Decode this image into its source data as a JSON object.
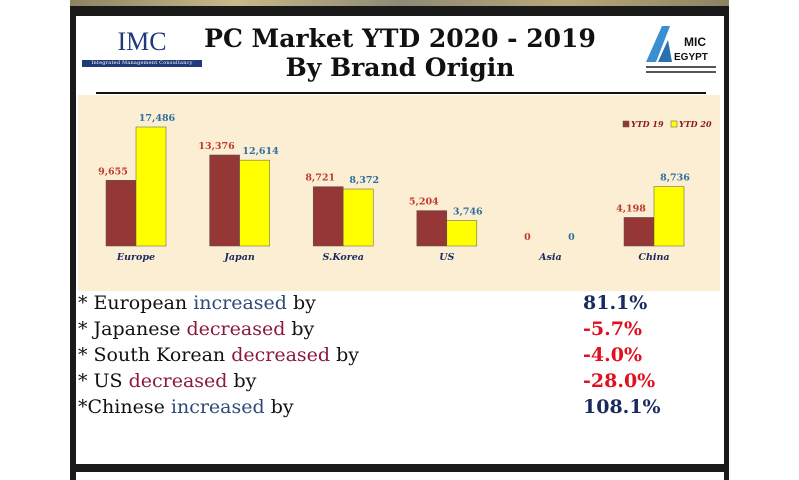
{
  "header": {
    "title_line1": "PC Market YTD 2020 - 2019",
    "title_line2": "By Brand Origin",
    "logo_left": "IMC",
    "logo_left_sub": "Integrated Management Consultancy",
    "logo_right": "AMIC EGYPT"
  },
  "chart_data": {
    "type": "bar",
    "title": "",
    "xlabel": "",
    "ylabel": "",
    "categories": [
      "Europe",
      "Japan",
      "S.Korea",
      "US",
      "Asia",
      "China"
    ],
    "series": [
      {
        "name": "YTD 19",
        "color": "#953735",
        "values": [
          9655,
          13376,
          8721,
          5204,
          0,
          4198
        ],
        "labels": [
          "9,655",
          "13,376",
          "8,721",
          "5,204",
          "0",
          "4,198"
        ]
      },
      {
        "name": "YTD 20",
        "color": "#ffff00",
        "values": [
          17486,
          12614,
          8372,
          3746,
          0,
          8736
        ],
        "labels": [
          "17,486",
          "12,614",
          "8,372",
          "3,746",
          "0",
          "8,736"
        ]
      }
    ],
    "ylim": [
      0,
      17486
    ],
    "grid": false,
    "legend": "top-right"
  },
  "summary": [
    {
      "pre": "* European ",
      "verb": "increased",
      "post": " by",
      "value": "81.1%",
      "dir": "inc"
    },
    {
      "pre": "* Japanese ",
      "verb": "decreased",
      "post": " by",
      "value": "-5.7%",
      "dir": "dec"
    },
    {
      "pre": "* South Korean ",
      "verb": "decreased",
      "post": " by",
      "value": "-4.0%",
      "dir": "dec"
    },
    {
      "pre": "* US ",
      "verb": "decreased",
      "post": " by",
      "value": "-28.0%",
      "dir": "dec"
    },
    {
      "pre": "*Chinese ",
      "verb": "increased",
      "post": " by",
      "value": "108.1%",
      "dir": "inc"
    }
  ],
  "colors": {
    "inc_value": "#1a2a5e",
    "dec_value": "#e01020"
  }
}
